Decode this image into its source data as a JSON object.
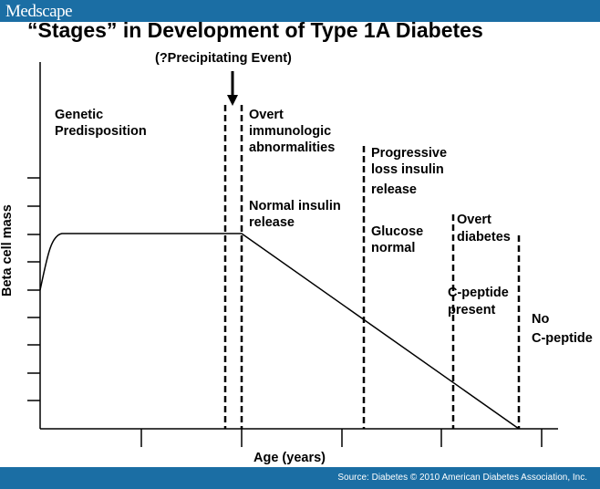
{
  "header": {
    "logo": "Medscape",
    "brand_color": "#1b6ea4"
  },
  "title": "“Stages” in Development of Type 1A Diabetes",
  "diagram": {
    "event_label": "(?Precipitating Event)",
    "y_axis_label": "Beta cell mass",
    "x_axis_label": "Age (years)",
    "stages": [
      {
        "lines": [
          "Genetic",
          "Predisposition"
        ]
      },
      {
        "lines": [
          "Overt",
          "immunologic",
          "abnormalities"
        ]
      },
      {
        "lines": [
          "Normal insulin",
          "release"
        ]
      },
      {
        "lines": [
          "Progressive",
          "loss insulin",
          "release"
        ]
      },
      {
        "lines": [
          "Glucose",
          "normal"
        ]
      },
      {
        "lines": [
          "Overt",
          "diabetes"
        ]
      },
      {
        "lines": [
          "C-peptide",
          "present"
        ]
      },
      {
        "lines": [
          "No",
          "C-peptide"
        ]
      }
    ]
  },
  "footer": {
    "source": "Source: Diabetes © 2010 American Diabetes Association, Inc."
  }
}
